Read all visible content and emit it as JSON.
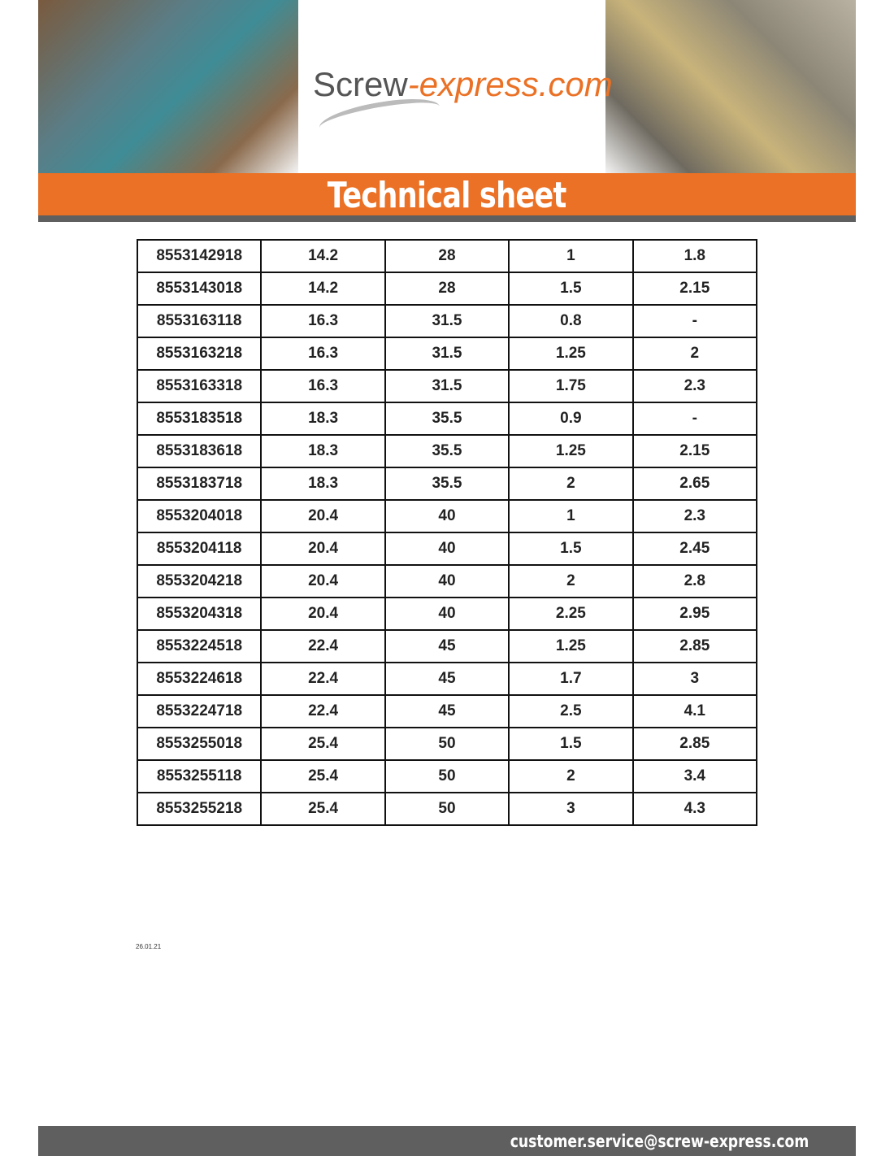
{
  "header": {
    "logo_name": "Screw",
    "logo_suffix": "-express.com",
    "title": "Technical sheet"
  },
  "table": {
    "rows": [
      [
        "8553142918",
        "14.2",
        "28",
        "1",
        "1.8"
      ],
      [
        "8553143018",
        "14.2",
        "28",
        "1.5",
        "2.15"
      ],
      [
        "8553163118",
        "16.3",
        "31.5",
        "0.8",
        "-"
      ],
      [
        "8553163218",
        "16.3",
        "31.5",
        "1.25",
        "2"
      ],
      [
        "8553163318",
        "16.3",
        "31.5",
        "1.75",
        "2.3"
      ],
      [
        "8553183518",
        "18.3",
        "35.5",
        "0.9",
        "-"
      ],
      [
        "8553183618",
        "18.3",
        "35.5",
        "1.25",
        "2.15"
      ],
      [
        "8553183718",
        "18.3",
        "35.5",
        "2",
        "2.65"
      ],
      [
        "8553204018",
        "20.4",
        "40",
        "1",
        "2.3"
      ],
      [
        "8553204118",
        "20.4",
        "40",
        "1.5",
        "2.45"
      ],
      [
        "8553204218",
        "20.4",
        "40",
        "2",
        "2.8"
      ],
      [
        "8553204318",
        "20.4",
        "40",
        "2.25",
        "2.95"
      ],
      [
        "8553224518",
        "22.4",
        "45",
        "1.25",
        "2.85"
      ],
      [
        "8553224618",
        "22.4",
        "45",
        "1.7",
        "3"
      ],
      [
        "8553224718",
        "22.4",
        "45",
        "2.5",
        "4.1"
      ],
      [
        "8553255018",
        "25.4",
        "50",
        "1.5",
        "2.85"
      ],
      [
        "8553255118",
        "25.4",
        "50",
        "2",
        "3.4"
      ],
      [
        "8553255218",
        "25.4",
        "50",
        "3",
        "4.3"
      ]
    ]
  },
  "date": "26.01.21",
  "footer": {
    "email": "customer.service@screw-express.com"
  }
}
